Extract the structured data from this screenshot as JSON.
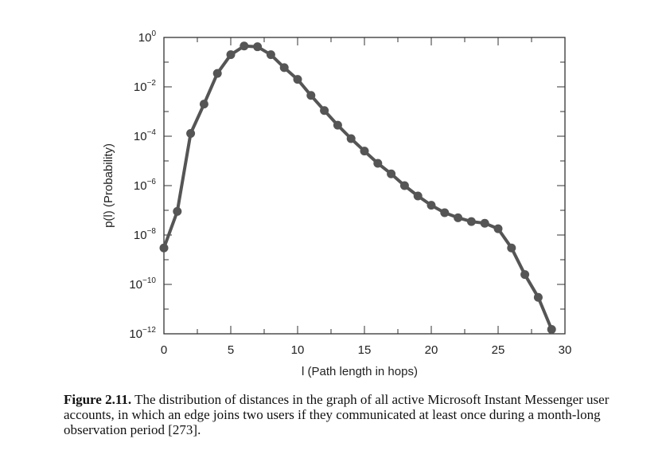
{
  "chart_data": {
    "type": "line",
    "xlabel": "l (Path length in hops)",
    "ylabel": "p(l) (Probability)",
    "xlim": [
      0,
      30
    ],
    "ylim_log10": [
      -12,
      0
    ],
    "yscale": "log",
    "x_ticks": [
      "0",
      "5",
      "10",
      "15",
      "20",
      "25",
      "30"
    ],
    "y_ticks": [
      {
        "base": "10",
        "exp": "0"
      },
      {
        "base": "10",
        "exp": "−2"
      },
      {
        "base": "10",
        "exp": "−4"
      },
      {
        "base": "10",
        "exp": "−6"
      },
      {
        "base": "10",
        "exp": "−8"
      },
      {
        "base": "10",
        "exp": "−10"
      },
      {
        "base": "10",
        "exp": "−12"
      }
    ],
    "marker_color": "#555555",
    "series": [
      {
        "x": [
          0,
          1,
          2,
          3,
          4,
          5,
          6,
          7,
          8,
          9,
          10,
          11,
          12,
          13,
          14,
          15,
          16,
          17,
          18,
          19,
          20,
          21,
          22,
          23,
          24,
          25,
          26,
          27,
          28,
          29
        ],
        "y": [
          3e-09,
          9e-08,
          0.00013,
          0.002,
          0.035,
          0.2,
          0.45,
          0.42,
          0.2,
          0.06,
          0.02,
          0.0045,
          0.0011,
          0.00028,
          8e-05,
          2.5e-05,
          8e-06,
          3e-06,
          1e-06,
          3.8e-07,
          1.6e-07,
          8e-08,
          5e-08,
          3.5e-08,
          3e-08,
          1.8e-08,
          3e-09,
          2.5e-10,
          3e-11,
          1.5e-12
        ]
      }
    ]
  },
  "caption": {
    "lead": "Figure 2.11.",
    "text": " The distribution of distances in the graph of all active Microsoft Instant Messenger user accounts, in which an edge joins two users if they communicated at least once during a month-long observation period [273]."
  }
}
